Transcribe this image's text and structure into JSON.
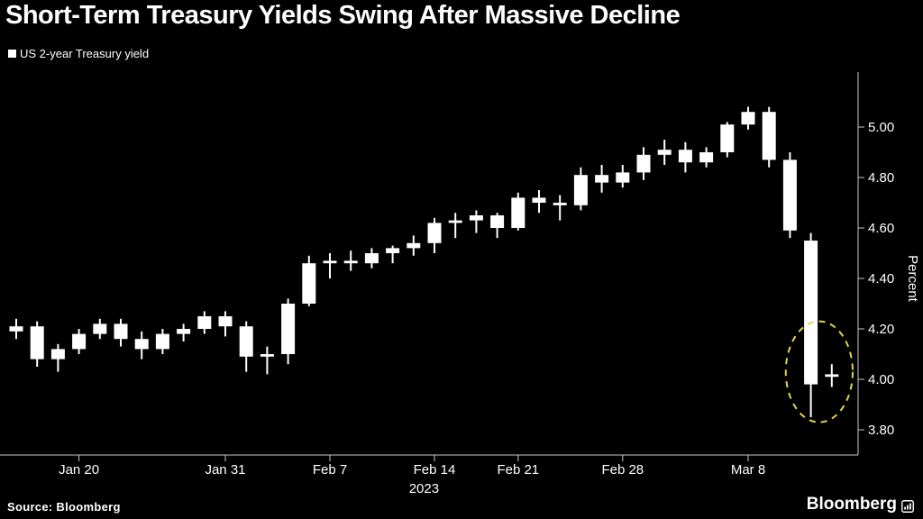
{
  "header": {
    "title": "Short-Term Treasury Yields Swing After Massive Decline"
  },
  "legend": {
    "label": "US 2-year Treasury yield",
    "marker_color": "#ffffff"
  },
  "footer": {
    "source": "Source:  Bloomberg",
    "brand": "Bloomberg"
  },
  "chart_data": {
    "type": "candlestick",
    "title": "Short-Term Treasury Yields Swing After Massive Decline",
    "series_name": "US 2-year Treasury yield",
    "ylabel": "Percent",
    "year_label": "2023",
    "ylim": [
      3.8,
      5.0
    ],
    "grid": false,
    "y_axis_side": "right",
    "y_ticks": [
      {
        "label": "3.80",
        "value": 3.8
      },
      {
        "label": "4.00",
        "value": 4.0
      },
      {
        "label": "4.20",
        "value": 4.2
      },
      {
        "label": "4.40",
        "value": 4.4
      },
      {
        "label": "4.60",
        "value": 4.6
      },
      {
        "label": "4.80",
        "value": 4.8
      },
      {
        "label": "5.00",
        "value": 5.0
      }
    ],
    "x_ticks": [
      {
        "label": "Jan 20",
        "index": 3
      },
      {
        "label": "Jan 31",
        "index": 10
      },
      {
        "label": "Feb 7",
        "index": 15
      },
      {
        "label": "Feb 14",
        "index": 20
      },
      {
        "label": "Feb 21",
        "index": 24
      },
      {
        "label": "Feb 28",
        "index": 29
      },
      {
        "label": "Mar 8",
        "index": 35
      }
    ],
    "candles": [
      {
        "d": "Jan 17",
        "o": 4.19,
        "h": 4.24,
        "l": 4.16,
        "c": 4.21
      },
      {
        "d": "Jan 18",
        "o": 4.21,
        "h": 4.23,
        "l": 4.05,
        "c": 4.08
      },
      {
        "d": "Jan 19",
        "o": 4.08,
        "h": 4.14,
        "l": 4.03,
        "c": 4.12
      },
      {
        "d": "Jan 20",
        "o": 4.12,
        "h": 4.2,
        "l": 4.1,
        "c": 4.18
      },
      {
        "d": "Jan 23",
        "o": 4.18,
        "h": 4.24,
        "l": 4.16,
        "c": 4.22
      },
      {
        "d": "Jan 24",
        "o": 4.22,
        "h": 4.24,
        "l": 4.13,
        "c": 4.16
      },
      {
        "d": "Jan 25",
        "o": 4.16,
        "h": 4.19,
        "l": 4.08,
        "c": 4.12
      },
      {
        "d": "Jan 26",
        "o": 4.12,
        "h": 4.2,
        "l": 4.1,
        "c": 4.18
      },
      {
        "d": "Jan 27",
        "o": 4.18,
        "h": 4.22,
        "l": 4.15,
        "c": 4.2
      },
      {
        "d": "Jan 30",
        "o": 4.2,
        "h": 4.27,
        "l": 4.18,
        "c": 4.25
      },
      {
        "d": "Jan 31",
        "o": 4.25,
        "h": 4.27,
        "l": 4.17,
        "c": 4.21
      },
      {
        "d": "Feb 1",
        "o": 4.21,
        "h": 4.23,
        "l": 4.03,
        "c": 4.09
      },
      {
        "d": "Feb 2",
        "o": 4.09,
        "h": 4.13,
        "l": 4.02,
        "c": 4.1
      },
      {
        "d": "Feb 3",
        "o": 4.1,
        "h": 4.32,
        "l": 4.06,
        "c": 4.3
      },
      {
        "d": "Feb 6",
        "o": 4.3,
        "h": 4.49,
        "l": 4.29,
        "c": 4.46
      },
      {
        "d": "Feb 7",
        "o": 4.46,
        "h": 4.5,
        "l": 4.4,
        "c": 4.47
      },
      {
        "d": "Feb 8",
        "o": 4.47,
        "h": 4.51,
        "l": 4.43,
        "c": 4.46
      },
      {
        "d": "Feb 9",
        "o": 4.46,
        "h": 4.52,
        "l": 4.44,
        "c": 4.5
      },
      {
        "d": "Feb 10",
        "o": 4.5,
        "h": 4.53,
        "l": 4.46,
        "c": 4.52
      },
      {
        "d": "Feb 13",
        "o": 4.52,
        "h": 4.57,
        "l": 4.49,
        "c": 4.54
      },
      {
        "d": "Feb 14",
        "o": 4.54,
        "h": 4.64,
        "l": 4.5,
        "c": 4.62
      },
      {
        "d": "Feb 15",
        "o": 4.62,
        "h": 4.66,
        "l": 4.56,
        "c": 4.63
      },
      {
        "d": "Feb 16",
        "o": 4.63,
        "h": 4.67,
        "l": 4.58,
        "c": 4.65
      },
      {
        "d": "Feb 17",
        "o": 4.65,
        "h": 4.66,
        "l": 4.56,
        "c": 4.6
      },
      {
        "d": "Feb 21",
        "o": 4.6,
        "h": 4.74,
        "l": 4.59,
        "c": 4.72
      },
      {
        "d": "Feb 22",
        "o": 4.72,
        "h": 4.75,
        "l": 4.66,
        "c": 4.7
      },
      {
        "d": "Feb 23",
        "o": 4.7,
        "h": 4.73,
        "l": 4.63,
        "c": 4.69
      },
      {
        "d": "Feb 24",
        "o": 4.69,
        "h": 4.84,
        "l": 4.67,
        "c": 4.81
      },
      {
        "d": "Feb 27",
        "o": 4.81,
        "h": 4.85,
        "l": 4.74,
        "c": 4.78
      },
      {
        "d": "Feb 28",
        "o": 4.78,
        "h": 4.85,
        "l": 4.76,
        "c": 4.82
      },
      {
        "d": "Mar 1",
        "o": 4.82,
        "h": 4.92,
        "l": 4.79,
        "c": 4.89
      },
      {
        "d": "Mar 2",
        "o": 4.89,
        "h": 4.95,
        "l": 4.85,
        "c": 4.91
      },
      {
        "d": "Mar 3",
        "o": 4.91,
        "h": 4.94,
        "l": 4.82,
        "c": 4.86
      },
      {
        "d": "Mar 6",
        "o": 4.86,
        "h": 4.92,
        "l": 4.84,
        "c": 4.9
      },
      {
        "d": "Mar 7",
        "o": 4.9,
        "h": 5.02,
        "l": 4.88,
        "c": 5.01
      },
      {
        "d": "Mar 8",
        "o": 5.01,
        "h": 5.08,
        "l": 4.99,
        "c": 5.06
      },
      {
        "d": "Mar 9",
        "o": 5.06,
        "h": 5.08,
        "l": 4.84,
        "c": 4.87
      },
      {
        "d": "Mar 10",
        "o": 4.87,
        "h": 4.9,
        "l": 4.56,
        "c": 4.59
      },
      {
        "d": "Mar 13",
        "o": 4.55,
        "h": 4.58,
        "l": 3.85,
        "c": 3.98
      },
      {
        "d": "Mar 14",
        "o": 4.01,
        "h": 4.06,
        "l": 3.97,
        "c": 4.02
      }
    ],
    "annotation": {
      "shape": "dashed-ellipse",
      "center_index": 38.4,
      "center_value": 4.03,
      "rx_candles": 1.6,
      "ry_value": 0.2,
      "color": "#e3d44b"
    },
    "colors": {
      "background": "#000000",
      "candle": "#ffffff",
      "axis": "#c8c8c8",
      "text": "#ffffff",
      "highlight": "#e3d44b"
    }
  }
}
